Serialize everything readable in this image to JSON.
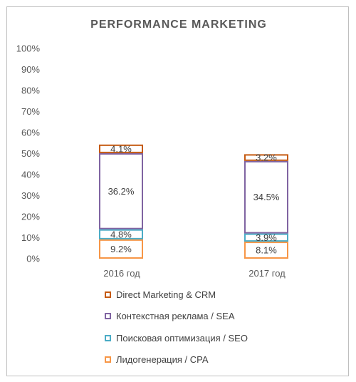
{
  "chart_data": {
    "type": "bar",
    "stacked": true,
    "title": "PERFORMANCE MARKETING",
    "categories": [
      "2016 год",
      "2017 год"
    ],
    "y_ticks": [
      "0%",
      "10%",
      "20%",
      "30%",
      "40%",
      "50%",
      "60%",
      "70%",
      "80%",
      "90%",
      "100%"
    ],
    "ylim": [
      0,
      100
    ],
    "grid": false,
    "legend_position": "bottom",
    "series": [
      {
        "name": "Лидогенерация / CPA",
        "color": "#F79646",
        "values": [
          9.2,
          8.1
        ],
        "labels": [
          "9.2%",
          "8.1%"
        ]
      },
      {
        "name": "Поисковая оптимизация / SEO",
        "color": "#4BACC6",
        "values": [
          4.8,
          3.9
        ],
        "labels": [
          "4.8%",
          "3.9%"
        ]
      },
      {
        "name": "Контекстная реклама / SEA",
        "color": "#8064A2",
        "values": [
          36.2,
          34.5
        ],
        "labels": [
          "36.2%",
          "34.5%"
        ]
      },
      {
        "name": "Direct Marketing & CRM",
        "color": "#C0504D",
        "values": [
          4.1,
          3.2
        ],
        "labels": [
          "4.1%",
          "3.2%"
        ]
      }
    ],
    "legend_order": [
      3,
      2,
      1,
      0
    ]
  },
  "colors": {
    "dm_border": "#C55A11"
  }
}
